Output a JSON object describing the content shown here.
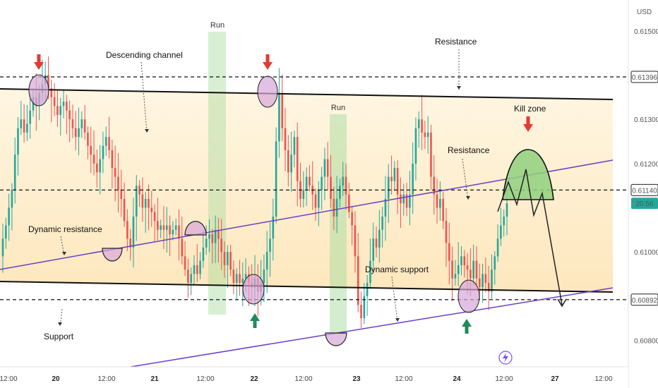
{
  "chart": {
    "currency": "USD",
    "current_time": "20:56",
    "bolt_icon": "lightning-icon",
    "colors": {
      "up": "#26a69a",
      "down": "#ef5350",
      "channel": "#6a3fc4",
      "zone": "#fde7bd",
      "run": "#a8dca0",
      "circle": "#d7a6d8",
      "kill_zone": "#8fd07e",
      "arrow_down": "#e53935",
      "arrow_up": "#1f8a5a"
    }
  },
  "chart_data": {
    "type": "candlestick",
    "symbol_unit": "USD",
    "price_axis": {
      "range": [
        0.6074,
        0.6157
      ],
      "ticks": [
        "0.61500",
        "0.61300",
        "0.61200",
        "0.61000",
        "0.60800"
      ],
      "highlight_levels": [
        {
          "value": 0.61396,
          "label": "0.61396"
        },
        {
          "value": 0.6114,
          "label": "0.61140"
        },
        {
          "value": 0.60892,
          "label": "0.60892"
        }
      ]
    },
    "time_axis": {
      "ticks": [
        "12:00",
        "20",
        "12:00",
        "21",
        "12:00",
        "22",
        "12:00",
        "23",
        "12:00",
        "24",
        "12:00",
        "27",
        "12:00"
      ],
      "bold_ticks": [
        "20",
        "21",
        "22",
        "23",
        "24",
        "27"
      ]
    },
    "annotations": {
      "descending_channel": "Descending channel",
      "dynamic_resistance": "Dynamic resistance",
      "dynamic_support": "Dynamic support",
      "support": "Support",
      "resistance_top": "Resistance",
      "resistance_mid": "Resistance",
      "kill_zone": "Kill zone",
      "run_1": "Run",
      "run_2": "Run"
    },
    "candles_close": [
      0.6103,
      0.6106,
      0.611,
      0.6114,
      0.6122,
      0.6128,
      0.613,
      0.6127,
      0.6129,
      0.6132,
      0.6135,
      0.6133,
      0.6136,
      0.6138,
      0.614,
      0.6137,
      0.6135,
      0.6133,
      0.6131,
      0.6133,
      0.6134,
      0.6132,
      0.613,
      0.6128,
      0.6126,
      0.6128,
      0.613,
      0.6127,
      0.6124,
      0.6122,
      0.612,
      0.6118,
      0.6121,
      0.6124,
      0.6126,
      0.6123,
      0.6119,
      0.6117,
      0.6114,
      0.6112,
      0.6107,
      0.6103,
      0.6101,
      0.6108,
      0.6115,
      0.6113,
      0.611,
      0.6112,
      0.611,
      0.6109,
      0.6107,
      0.6105,
      0.6106,
      0.6105,
      0.6106,
      0.6104,
      0.6105,
      0.6106,
      0.6103,
      0.6099,
      0.6096,
      0.6093,
      0.6095,
      0.6097,
      0.6095,
      0.6098,
      0.6101,
      0.6103,
      0.6104,
      0.6102,
      0.6105,
      0.6103,
      0.61,
      0.6097,
      0.61,
      0.6096,
      0.6093,
      0.6095,
      0.6093,
      0.6094,
      0.6095,
      0.6093,
      0.6092,
      0.6094,
      0.6091,
      0.6093,
      0.6096,
      0.61,
      0.6103,
      0.6108,
      0.6125,
      0.6136,
      0.6128,
      0.6123,
      0.6118,
      0.6122,
      0.6126,
      0.6116,
      0.6112,
      0.6114,
      0.6117,
      0.6115,
      0.6113,
      0.611,
      0.6114,
      0.6117,
      0.6121,
      0.6117,
      0.6112,
      0.6108,
      0.6112,
      0.6115,
      0.6117,
      0.6113,
      0.6109,
      0.6106,
      0.6099,
      0.6088,
      0.6085,
      0.609,
      0.6093,
      0.6098,
      0.6103,
      0.6101,
      0.6105,
      0.6108,
      0.6112,
      0.6117,
      0.6116,
      0.6119,
      0.6113,
      0.6111,
      0.6113,
      0.611,
      0.6113,
      0.612,
      0.6128,
      0.613,
      0.6127,
      0.6126,
      0.6127,
      0.6117,
      0.6113,
      0.611,
      0.6112,
      0.6107,
      0.6102,
      0.6098,
      0.6094,
      0.6095,
      0.6097,
      0.6099,
      0.6097,
      0.6096,
      0.6094,
      0.6098,
      0.6094,
      0.6092,
      0.6095,
      0.6093,
      0.6091,
      0.6096,
      0.6099,
      0.6103,
      0.6106,
      0.6108,
      0.6111
    ]
  }
}
